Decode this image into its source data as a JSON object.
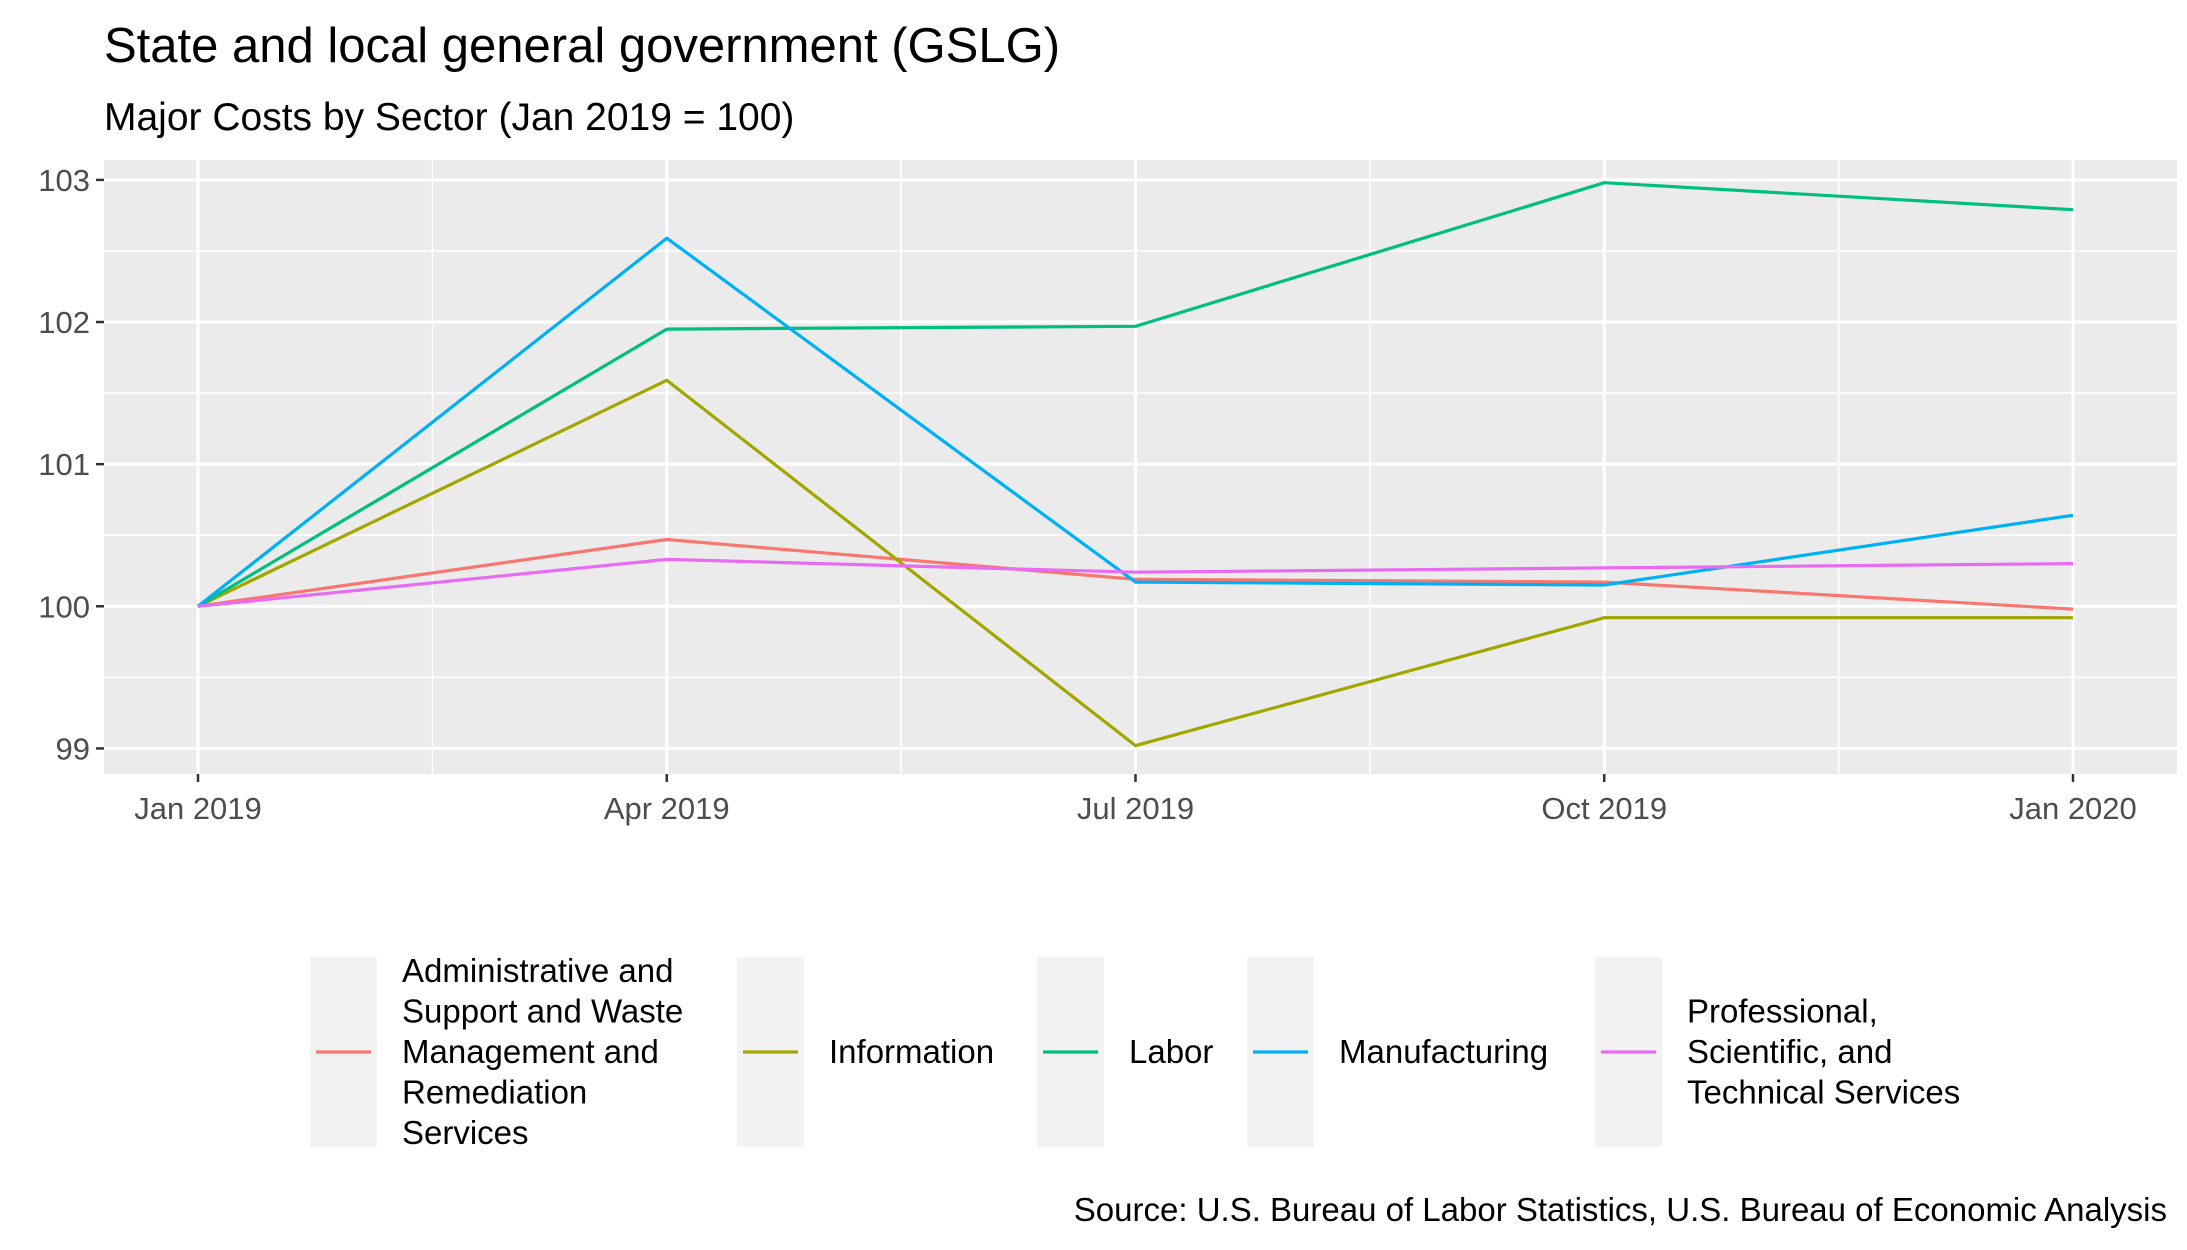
{
  "chart_data": {
    "type": "line",
    "title": "State and local general government (GSLG)",
    "subtitle": "Major Costs by Sector (Jan 2019 = 100)",
    "caption": "Source: U.S. Bureau of Labor Statistics, U.S. Bureau of Economic Analysis",
    "xlabel": "",
    "ylabel": "",
    "x": [
      "2019-01",
      "2019-04",
      "2019-07",
      "2019-10",
      "2020-01"
    ],
    "x_tick_labels": [
      "Jan 2019",
      "Apr 2019",
      "Jul 2019",
      "Oct 2019",
      "Jan 2020"
    ],
    "y_ticks": [
      99,
      100,
      101,
      102,
      103
    ],
    "ylim": [
      98.82,
      103.14
    ],
    "grid": true,
    "legend_position": "bottom",
    "series": [
      {
        "name": "Administrative and Support and Waste Management and Remediation Services",
        "legend_lines": [
          "Administrative and",
          "Support and Waste",
          "Management and",
          "Remediation",
          "Services"
        ],
        "color": "#F8766D",
        "values": [
          100.0,
          100.47,
          100.19,
          100.17,
          99.98
        ]
      },
      {
        "name": "Information",
        "legend_lines": [
          "Information"
        ],
        "color": "#A3A500",
        "values": [
          100.0,
          101.59,
          99.02,
          99.92,
          99.92
        ]
      },
      {
        "name": "Labor",
        "legend_lines": [
          "Labor"
        ],
        "color": "#00BF7D",
        "values": [
          100.0,
          101.95,
          101.97,
          102.98,
          102.79
        ]
      },
      {
        "name": "Manufacturing",
        "legend_lines": [
          "Manufacturing"
        ],
        "color": "#00B0F6",
        "values": [
          100.0,
          102.59,
          100.17,
          100.15,
          100.64
        ]
      },
      {
        "name": "Professional, Scientific, and Technical Services",
        "legend_lines": [
          "Professional,",
          "Scientific, and",
          "Technical Services"
        ],
        "color": "#E76BF3",
        "values": [
          100.0,
          100.33,
          100.24,
          100.27,
          100.3
        ]
      }
    ]
  }
}
